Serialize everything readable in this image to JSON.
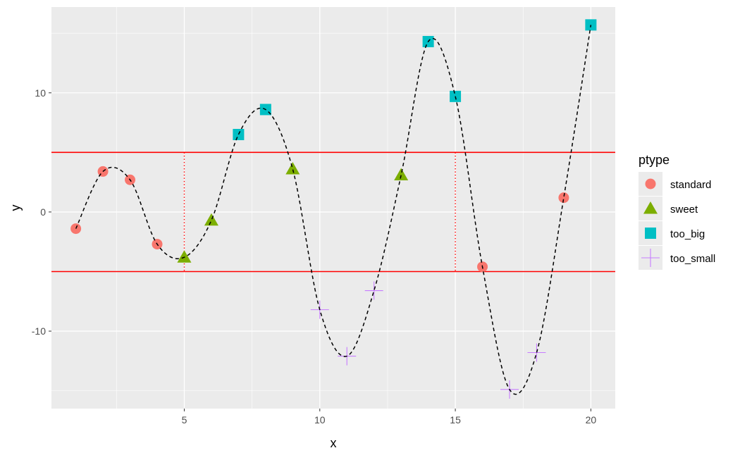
{
  "chart_data": {
    "type": "scatter",
    "title": "",
    "xlabel": "x",
    "ylabel": "y",
    "xlim": [
      0.1,
      20.9
    ],
    "ylim": [
      -16.5,
      17.2
    ],
    "x_ticks": [
      5,
      10,
      15,
      20
    ],
    "y_ticks": [
      -10,
      0,
      10
    ],
    "grid": true,
    "legend": {
      "title": "ptype",
      "position": "right"
    },
    "hlines": [
      {
        "y": 5,
        "color": "#FF0000"
      },
      {
        "y": -5,
        "color": "#FF0000"
      }
    ],
    "vsegments": [
      {
        "x": 5,
        "y_from": -5,
        "y_to": 5,
        "color": "#FF0000",
        "style": "dotted"
      },
      {
        "x": 15,
        "y_from": -5,
        "y_to": 5,
        "color": "#FF0000",
        "style": "dotted"
      }
    ],
    "curve": {
      "style": "dashed",
      "color": "#000000"
    },
    "series": [
      {
        "name": "standard",
        "color": "#F8766D",
        "shape": "circle",
        "points": [
          [
            1,
            -1.4
          ],
          [
            2,
            3.4
          ],
          [
            3,
            2.7
          ],
          [
            4,
            -2.7
          ],
          [
            16,
            -4.6
          ],
          [
            19,
            1.2
          ]
        ]
      },
      {
        "name": "sweet",
        "color": "#7CAE00",
        "shape": "triangle",
        "points": [
          [
            5,
            -3.8
          ],
          [
            6,
            -0.7
          ],
          [
            9,
            3.6
          ],
          [
            13,
            3.1
          ]
        ]
      },
      {
        "name": "too_big",
        "color": "#00BFC4",
        "shape": "square",
        "points": [
          [
            7,
            6.5
          ],
          [
            8,
            8.6
          ],
          [
            14,
            14.3
          ],
          [
            15,
            9.7
          ],
          [
            20,
            15.7
          ]
        ]
      },
      {
        "name": "too_small",
        "color": "#C77CFF",
        "shape": "plus",
        "points": [
          [
            10,
            -8.2
          ],
          [
            11,
            -12.1
          ],
          [
            12,
            -6.6
          ],
          [
            17,
            -14.9
          ],
          [
            18,
            -11.8
          ]
        ]
      }
    ]
  }
}
